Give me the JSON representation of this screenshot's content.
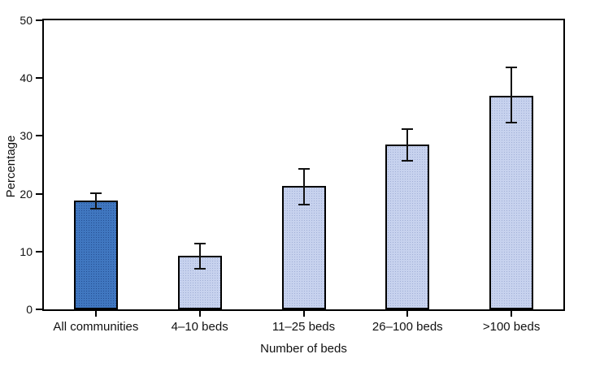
{
  "figure": {
    "background": "#ffffff"
  },
  "chart_data": {
    "type": "bar",
    "title": "",
    "xlabel": "Number of beds",
    "ylabel": "Percentage",
    "categories": [
      "All communities",
      "4–10 beds",
      "11–25 beds",
      "26–100 beds",
      ">100 beds"
    ],
    "values": [
      18.8,
      9.3,
      21.3,
      28.5,
      37.0
    ],
    "ci_low": [
      17.5,
      7.2,
      18.3,
      25.8,
      32.5
    ],
    "ci_high": [
      20.0,
      11.3,
      24.2,
      31.0,
      41.7
    ],
    "ylim": [
      0,
      50
    ],
    "yticks": [
      0,
      10,
      20,
      30,
      40,
      50
    ],
    "grid": false,
    "legend": null,
    "error_bars": true,
    "highlight_index": 0,
    "colors": {
      "highlight_bar": "#4077c0",
      "bar": "#c7d2ee",
      "outline": "#000000",
      "error": "#111111",
      "text": "#111111",
      "background": "#ffffff"
    }
  }
}
